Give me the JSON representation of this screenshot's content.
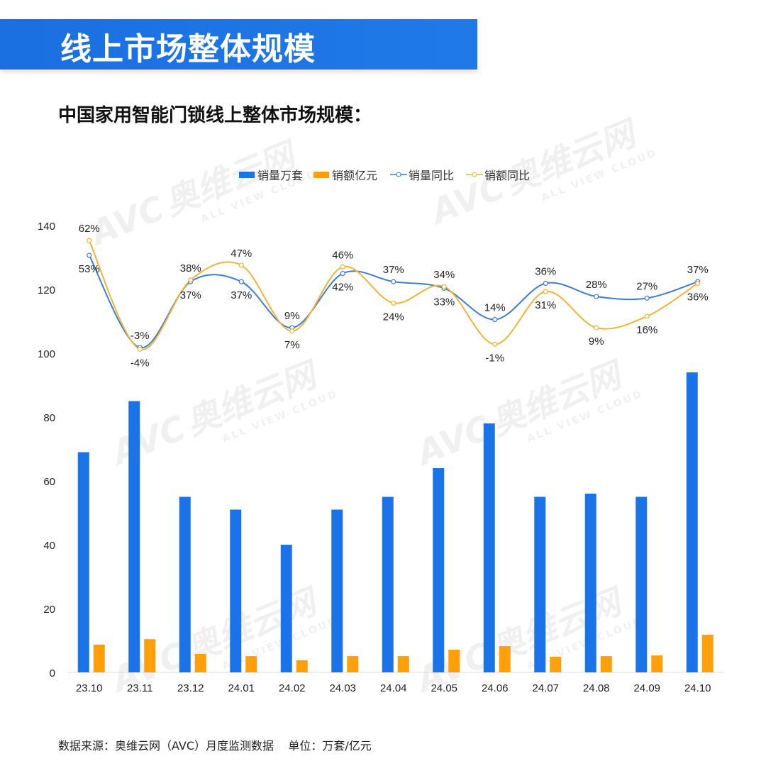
{
  "header": {
    "title": "线上市场整体规模"
  },
  "subtitle": "中国家用智能门锁线上整体市场规模：",
  "footer": "数据来源：奥维云网（AVC）月度监测数据    单位：万套/亿元",
  "watermark": {
    "logo": "AVC",
    "cn": "奥维云网",
    "en": "ALL VIEW CLOUD"
  },
  "colors": {
    "volume_bar": "#1a73e8",
    "amount_bar": "#ff9f0a",
    "volume_yoy": "#3f7ecf",
    "amount_yoy": "#f2b339",
    "banner": "#1b6fe0"
  },
  "chart_data": {
    "type": "bar+line",
    "categories": [
      "23.10",
      "23.11",
      "23.12",
      "24.01",
      "24.02",
      "24.03",
      "24.04",
      "24.05",
      "24.06",
      "24.07",
      "24.08",
      "24.09",
      "24.10"
    ],
    "ylim": [
      0,
      140
    ],
    "yticks": [
      0,
      20,
      40,
      60,
      80,
      100,
      120,
      140
    ],
    "grid": false,
    "legend": "top",
    "series": [
      {
        "name": "销量万套",
        "kind": "bar",
        "values": [
          69,
          85,
          55,
          51,
          40,
          51,
          55,
          64,
          78,
          55,
          56,
          55,
          94
        ]
      },
      {
        "name": "销额亿元",
        "kind": "bar",
        "values": [
          8.7,
          10.4,
          5.8,
          5.1,
          3.8,
          5.1,
          5.1,
          7.1,
          8.2,
          4.9,
          5.1,
          5.3,
          11.8
        ]
      },
      {
        "name": "销量同比",
        "kind": "line",
        "axis": "secondary-hidden",
        "values": [
          53,
          -3,
          37,
          37,
          9,
          42,
          37,
          33,
          14,
          36,
          28,
          27,
          37
        ],
        "labels": [
          "53%",
          "-3%",
          "37%",
          "37%",
          "9%",
          "42%",
          "37%",
          "33%",
          "14%",
          "36%",
          "28%",
          "27%",
          "37%"
        ]
      },
      {
        "name": "销额同比",
        "kind": "line",
        "axis": "secondary-hidden",
        "values": [
          62,
          -4,
          38,
          47,
          7,
          46,
          24,
          34,
          -1,
          31,
          9,
          16,
          36
        ],
        "labels": [
          "62%",
          "-4%",
          "38%",
          "47%",
          "7%",
          "46%",
          "24%",
          "34%",
          "-1%",
          "31%",
          "9%",
          "16%",
          "36%"
        ]
      }
    ]
  }
}
